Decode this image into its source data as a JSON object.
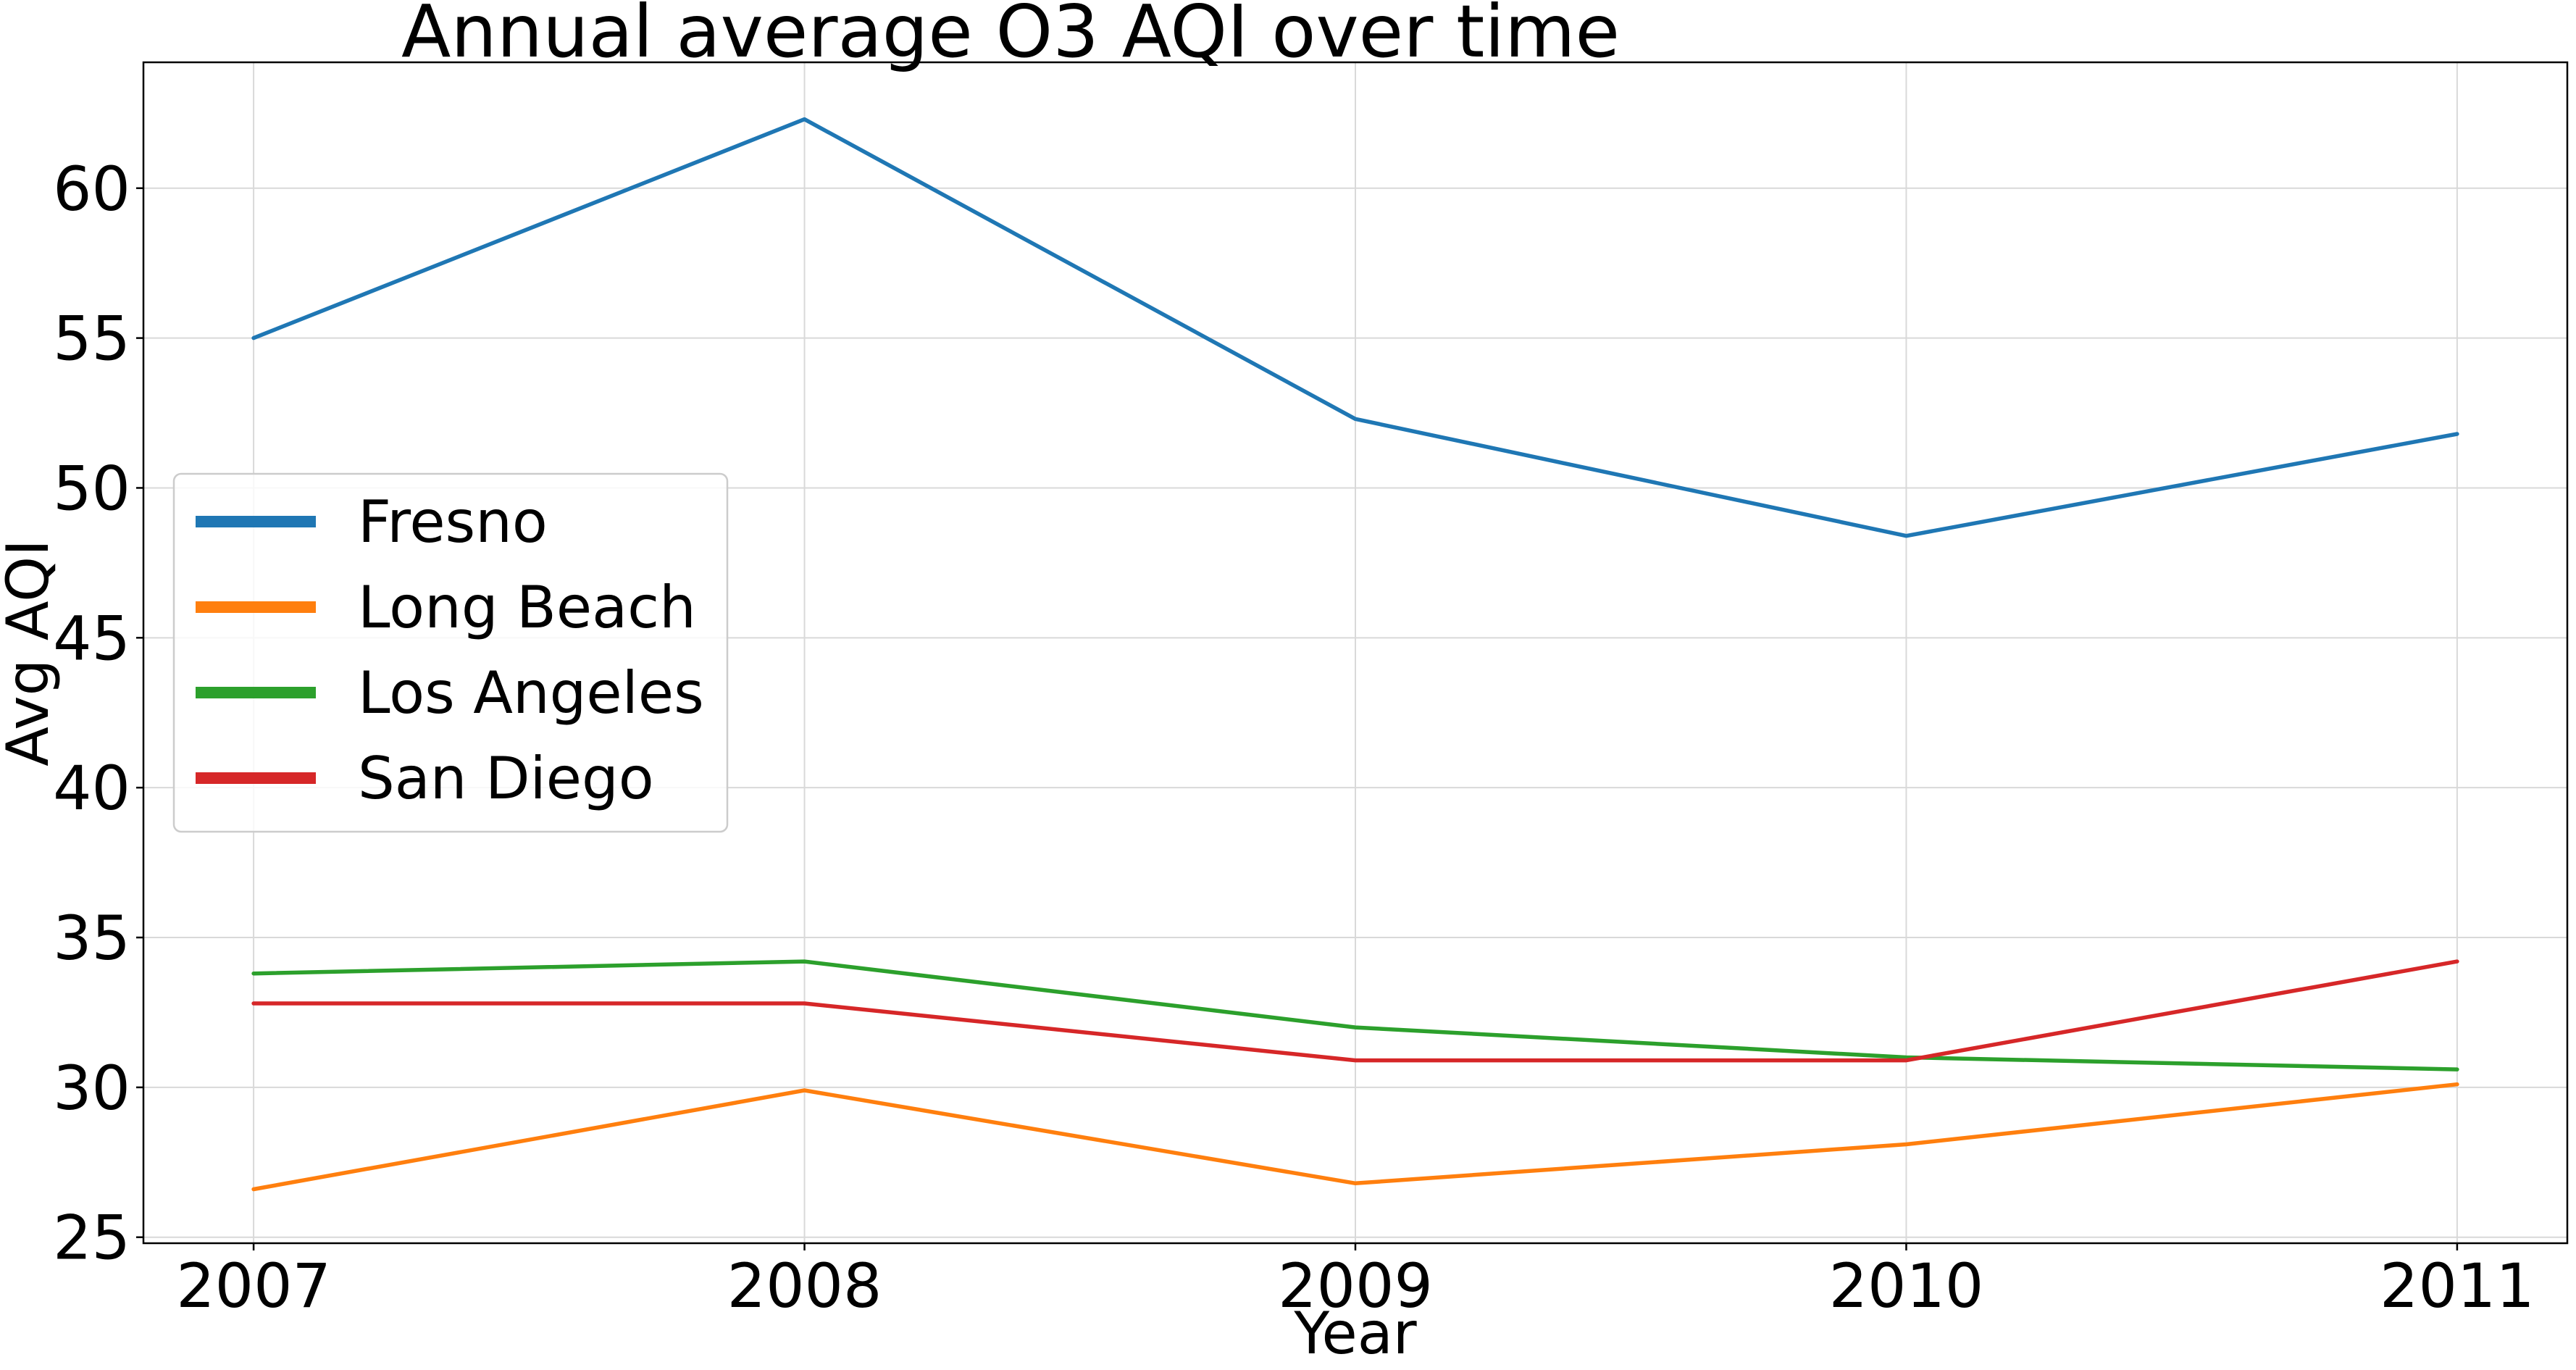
{
  "chart_data": {
    "type": "line",
    "title": "Annual average O3 AQI over time",
    "xlabel": "Year",
    "ylabel": "Avg AQI",
    "x": [
      2007,
      2008,
      2009,
      2010,
      2011
    ],
    "x_tick_labels": [
      "2007",
      "2008",
      "2009",
      "2010",
      "2011"
    ],
    "xlim": [
      2006.8,
      2011.2
    ],
    "ylim": [
      24.8,
      64.2
    ],
    "y_ticks": [
      25,
      30,
      35,
      40,
      45,
      50,
      55,
      60
    ],
    "y_tick_labels": [
      "25",
      "30",
      "35",
      "40",
      "45",
      "50",
      "55",
      "60"
    ],
    "grid": true,
    "legend_position": "center-left",
    "series": [
      {
        "name": "Fresno",
        "color": "#1f77b4",
        "values": [
          55.0,
          62.3,
          52.3,
          48.4,
          51.8
        ]
      },
      {
        "name": "Long Beach",
        "color": "#ff7f0e",
        "values": [
          26.6,
          29.9,
          26.8,
          28.1,
          30.1
        ]
      },
      {
        "name": "Los Angeles",
        "color": "#2ca02c",
        "values": [
          33.8,
          34.2,
          32.0,
          31.0,
          30.6
        ]
      },
      {
        "name": "San Diego",
        "color": "#d62728",
        "values": [
          32.8,
          32.8,
          30.9,
          30.9,
          34.2
        ]
      }
    ]
  }
}
